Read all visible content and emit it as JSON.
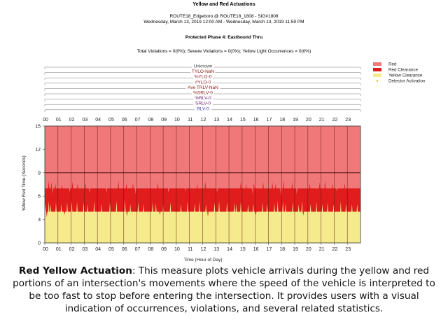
{
  "title": "Yellow and Red Actuations",
  "subtitle_line1": "ROUTE18_Edgeboro @ ROUTE18_1808 - SIG#1808",
  "subtitle_line2": "Wednesday, March 13, 2019 12:00 AM - Wednesday, March 13, 2019 11:59 PM",
  "phase_title": "Protected Phase 4: Eastbound Thru",
  "stats_line": "Total Violations = 0(0%); Severe Violations = 0(0%); Yellow Light Occurrences = 0(0%)",
  "caption": {
    "bold": "Red Yellow Actuation",
    "text": ": This measure plots vehicle arrivals during the yellow and red portions of an intersection's movements where the speed of the vehicle is interpreted to be too fast to stop before entering the intersection. It provides users with a visual indication of occurrences, violations, and several related statistics."
  },
  "colors": {
    "red": "#f07878",
    "red_clearance": "#e01c1c",
    "yellow_clearance": "#f5eb8c",
    "detector": "#e8c800"
  },
  "chart_data": {
    "type": "area",
    "xlabel": "Time (Hour of Day)",
    "ylabel": "Yellow Red Time (Seconds)",
    "xlim": [
      0,
      24
    ],
    "ylim": [
      0,
      15
    ],
    "x_ticks": [
      "00",
      "01",
      "02",
      "03",
      "04",
      "05",
      "06",
      "07",
      "08",
      "09",
      "10",
      "11",
      "12",
      "13",
      "14",
      "15",
      "16",
      "17",
      "18",
      "19",
      "20",
      "21",
      "22",
      "23"
    ],
    "y_ticks": [
      0,
      3,
      6,
      9,
      12,
      15
    ],
    "legend_position": "top-right",
    "legend": [
      "Red",
      "Red Clearance",
      "Yellow Clearance",
      "Detector Activation"
    ],
    "series": [
      {
        "name": "Yellow Clearance",
        "band": [
          0,
          4
        ]
      },
      {
        "name": "Red Clearance",
        "band": [
          4,
          7
        ]
      },
      {
        "name": "Red",
        "band": [
          7,
          15
        ]
      }
    ],
    "spikes_up_yellow": [
      [
        0.05,
        5.0
      ],
      [
        0.3,
        5.4
      ],
      [
        0.45,
        5.0
      ],
      [
        0.85,
        5.2
      ],
      [
        1.25,
        5.0
      ],
      [
        1.7,
        5.2
      ],
      [
        2.05,
        5.4
      ],
      [
        2.45,
        5.3
      ],
      [
        2.95,
        5.2
      ],
      [
        3.25,
        5.0
      ],
      [
        3.75,
        5.4
      ],
      [
        4.3,
        5.0
      ],
      [
        4.95,
        5.2
      ],
      [
        5.45,
        5.4
      ],
      [
        6.1,
        5.6
      ],
      [
        6.5,
        5.0
      ],
      [
        7.1,
        5.3
      ],
      [
        7.5,
        5.0
      ],
      [
        8.2,
        5.3
      ],
      [
        8.45,
        5.1
      ],
      [
        9.0,
        5.0
      ],
      [
        9.55,
        5.2
      ],
      [
        10.35,
        5.0
      ],
      [
        10.85,
        5.4
      ],
      [
        11.4,
        5.1
      ],
      [
        11.75,
        5.3
      ],
      [
        12.25,
        5.0
      ],
      [
        12.9,
        5.2
      ],
      [
        13.25,
        5.4
      ],
      [
        13.85,
        5.3
      ],
      [
        14.4,
        5.2
      ],
      [
        14.55,
        5.0
      ],
      [
        14.9,
        5.3
      ],
      [
        15.45,
        5.0
      ],
      [
        15.85,
        5.1
      ],
      [
        16.55,
        5.2
      ],
      [
        16.9,
        5.0
      ],
      [
        17.45,
        5.1
      ],
      [
        17.7,
        5.4
      ],
      [
        18.1,
        5.3
      ],
      [
        18.3,
        5.0
      ],
      [
        18.85,
        5.3
      ],
      [
        19.3,
        5.0
      ],
      [
        19.55,
        5.4
      ],
      [
        20.2,
        5.0
      ],
      [
        20.65,
        5.3
      ],
      [
        21.1,
        5.0
      ],
      [
        21.5,
        5.2
      ],
      [
        21.95,
        5.0
      ],
      [
        22.5,
        5.3
      ],
      [
        22.9,
        5.1
      ],
      [
        23.35,
        5.0
      ],
      [
        23.75,
        5.0
      ]
    ],
    "spikes_up_red": [
      [
        0.3,
        8.0
      ],
      [
        0.5,
        7.8
      ],
      [
        0.8,
        7.6
      ],
      [
        1.3,
        7.5
      ],
      [
        2.1,
        7.9
      ],
      [
        2.5,
        7.6
      ],
      [
        3.1,
        7.7
      ],
      [
        5.6,
        8.0
      ],
      [
        6.2,
        7.7
      ],
      [
        6.7,
        7.7
      ],
      [
        8.6,
        7.8
      ],
      [
        11.6,
        7.6
      ],
      [
        12.2,
        7.9
      ],
      [
        14.9,
        7.8
      ],
      [
        15.3,
        7.6
      ],
      [
        15.9,
        7.7
      ],
      [
        16.6,
        7.9
      ],
      [
        17.3,
        7.8
      ],
      [
        17.55,
        7.6
      ],
      [
        18.15,
        8.1
      ],
      [
        18.8,
        7.8
      ],
      [
        20.15,
        7.7
      ],
      [
        20.9,
        7.8
      ],
      [
        21.3,
        8.0
      ],
      [
        21.85,
        7.6
      ],
      [
        22.8,
        7.7
      ]
    ],
    "spikes_down_red": [
      [
        0.6,
        6.3
      ],
      [
        1.9,
        6.5
      ],
      [
        3.4,
        6.4
      ],
      [
        4.7,
        6.4
      ],
      [
        6.9,
        6.2
      ],
      [
        9.4,
        6.4
      ],
      [
        10.7,
        6.6
      ],
      [
        13.1,
        6.4
      ],
      [
        15.8,
        6.2
      ],
      [
        17.95,
        6.0
      ],
      [
        19.15,
        6.2
      ],
      [
        22.2,
        6.6
      ]
    ],
    "spikes_down_yellow": [
      [
        0.15,
        3.3
      ],
      [
        1.5,
        3.6
      ],
      [
        6.25,
        3.4
      ],
      [
        8.75,
        3.6
      ],
      [
        12.4,
        3.3
      ],
      [
        16.05,
        3.6
      ],
      [
        19.65,
        3.5
      ]
    ],
    "detector_activations": [],
    "top_lines": [
      "Unknown",
      "TYLO-NaN",
      "%YLO-0",
      "#YLO-0",
      "Ave TRLV-NaN",
      "%SRLV-0",
      "%RLV-0",
      "SRLV-0",
      "RLV-0"
    ]
  }
}
